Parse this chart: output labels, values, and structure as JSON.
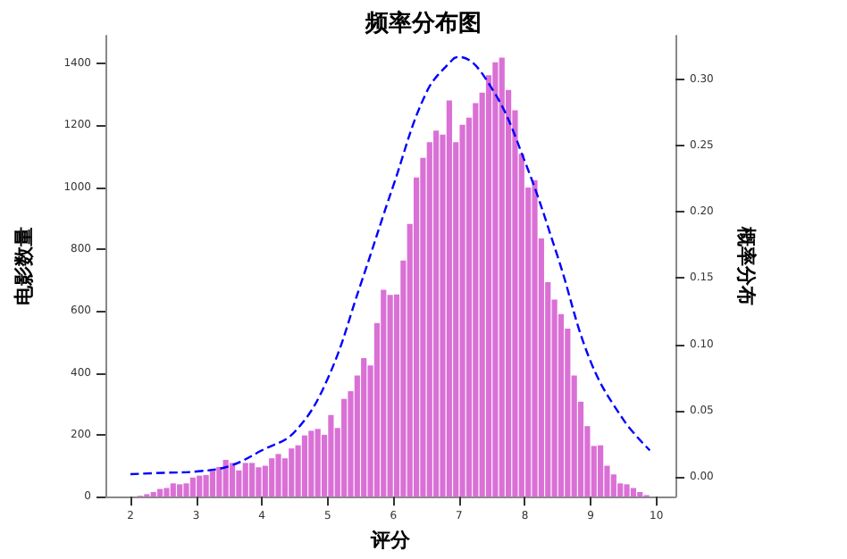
{
  "chart_data": {
    "type": "histogram",
    "title": "频率分布图",
    "xlabel": "评分",
    "ylabel": "电影数量",
    "y2label": "概率分布",
    "color": "#da70d6",
    "bins": [
      2.1,
      2.2,
      2.3,
      2.4,
      2.5,
      2.6,
      2.7,
      2.8,
      2.9,
      3.0,
      3.1,
      3.2,
      3.3,
      3.4,
      3.5,
      3.6,
      3.7,
      3.8,
      3.9,
      4.0,
      4.1,
      4.2,
      4.3,
      4.4,
      4.5,
      4.6,
      4.7,
      4.8,
      4.9,
      5.0,
      5.1,
      5.2,
      5.3,
      5.4,
      5.5,
      5.6,
      5.7,
      5.8,
      5.9,
      6.0,
      6.1,
      6.2,
      6.3,
      6.4,
      6.5,
      6.6,
      6.7,
      6.8,
      6.9,
      7.0,
      7.1,
      7.2,
      7.3,
      7.4,
      7.5,
      7.6,
      7.7,
      7.8,
      7.9,
      8.0,
      8.1,
      8.2,
      8.3,
      8.4,
      8.5,
      8.6,
      8.7,
      8.8,
      8.9,
      9.0,
      9.1,
      9.2,
      9.3,
      9.4,
      9.5,
      9.6,
      9.7,
      9.8,
      9.9
    ],
    "values": [
      3,
      8,
      15,
      25,
      28,
      43,
      40,
      43,
      62,
      68,
      70,
      85,
      96,
      119,
      109,
      85,
      109,
      109,
      95,
      100,
      124,
      138,
      124,
      156,
      166,
      198,
      213,
      219,
      200,
      264,
      222,
      316,
      341,
      392,
      448,
      424,
      561,
      669,
      652,
      654,
      763,
      882,
      1032,
      1095,
      1146,
      1183,
      1170,
      1281,
      1146,
      1202,
      1225,
      1272,
      1306,
      1362,
      1404,
      1419,
      1315,
      1249,
      1108,
      999,
      1023,
      835,
      693,
      637,
      590,
      543,
      392,
      307,
      228,
      164,
      166,
      100,
      72,
      43,
      40,
      28,
      15,
      5
    ],
    "series": [
      {
        "type": "line",
        "axis": "y2",
        "color": "#0000ff",
        "line_style": "dashed",
        "marker": "none",
        "x": [
          2.0,
          2.5,
          3.0,
          3.5,
          4.0,
          4.5,
          5.0,
          5.5,
          6.0,
          6.5,
          6.9,
          7.0,
          7.5,
          8.0,
          8.5,
          9.0,
          9.5,
          9.9
        ],
        "values": [
          0.002,
          0.003,
          0.004,
          0.008,
          0.02,
          0.034,
          0.074,
          0.145,
          0.22,
          0.29,
          0.315,
          0.317,
          0.293,
          0.238,
          0.166,
          0.087,
          0.043,
          0.02
        ]
      }
    ],
    "xlim": [
      1.62,
      10.29
    ],
    "xticks": [
      2,
      3,
      4,
      5,
      6,
      7,
      8,
      9,
      10
    ],
    "ylim": [
      0,
      1490
    ],
    "yticks": [
      0,
      200,
      400,
      600,
      800,
      1000,
      1200,
      1400
    ],
    "y2lim": [
      -0.015,
      0.333
    ],
    "y2ticks": [
      {
        "value": 0,
        "label": "0.00"
      },
      {
        "value": 0.05,
        "label": "0.05"
      },
      {
        "value": 0.1,
        "label": "0.10"
      },
      {
        "value": 0.15,
        "label": "0.15"
      },
      {
        "value": 0.2,
        "label": "0.20"
      },
      {
        "value": 0.25,
        "label": "0.25"
      },
      {
        "value": 0.3,
        "label": "0.30"
      }
    ],
    "grid": false
  }
}
